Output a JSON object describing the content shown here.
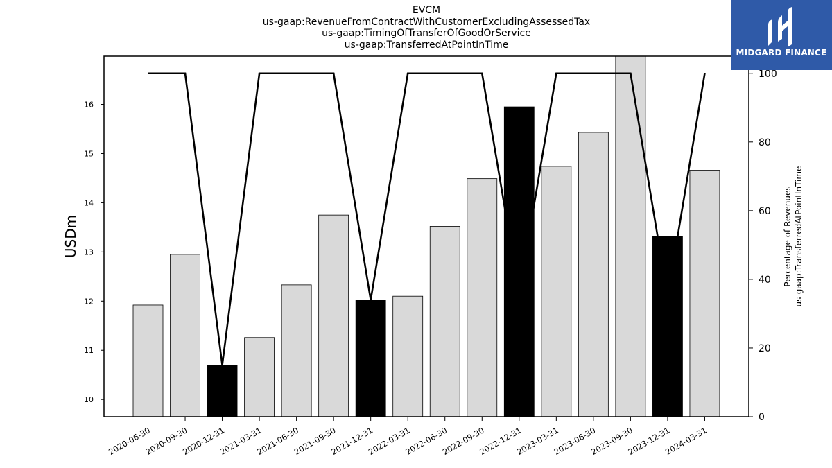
{
  "titles": [
    "EVCM",
    "us-gaap:RevenueFromContractWithCustomerExcludingAssessedTax",
    "us-gaap:TimingOfTransferOfGoodOrService",
    "us-gaap:TransferredAtPointInTime"
  ],
  "brand": {
    "name": "MIDGARD FINANCE",
    "color": "#2f5aa8",
    "icon": "midgard-logo-icon"
  },
  "chart_data": {
    "type": "bar",
    "categories": [
      "2020-06-30",
      "2020-09-30",
      "2020-12-31",
      "2021-03-31",
      "2021-06-30",
      "2021-09-30",
      "2021-12-31",
      "2022-03-31",
      "2022-06-30",
      "2022-09-30",
      "2022-12-31",
      "2023-03-31",
      "2023-06-30",
      "2023-09-30",
      "2023-12-31",
      "2024-03-31"
    ],
    "bars": {
      "values": [
        11.92,
        12.95,
        10.7,
        11.26,
        12.33,
        13.75,
        12.02,
        12.1,
        13.52,
        14.49,
        15.95,
        14.74,
        15.43,
        17.0,
        13.31,
        14.66
      ],
      "highlight": [
        false,
        false,
        true,
        false,
        false,
        false,
        true,
        false,
        false,
        false,
        true,
        false,
        false,
        false,
        true,
        false
      ],
      "fill": "#d9d9d9",
      "highlight_fill": "#000000"
    },
    "line": {
      "values": [
        100,
        100,
        15,
        100,
        100,
        100,
        34,
        100,
        100,
        100,
        36,
        100,
        100,
        100,
        35,
        100
      ],
      "color": "#000000"
    },
    "ylabel": "USDm",
    "y2label": [
      "Percentage of Revenues",
      "us-gaap:TransferredAtPointInTime"
    ],
    "ylim": [
      9.65,
      16.98
    ],
    "y2lim": [
      0,
      105
    ],
    "yticks": [
      10,
      11,
      12,
      13,
      14,
      15,
      16
    ],
    "y2ticks": [
      0,
      20,
      40,
      60,
      80,
      100
    ],
    "grid": false
  }
}
